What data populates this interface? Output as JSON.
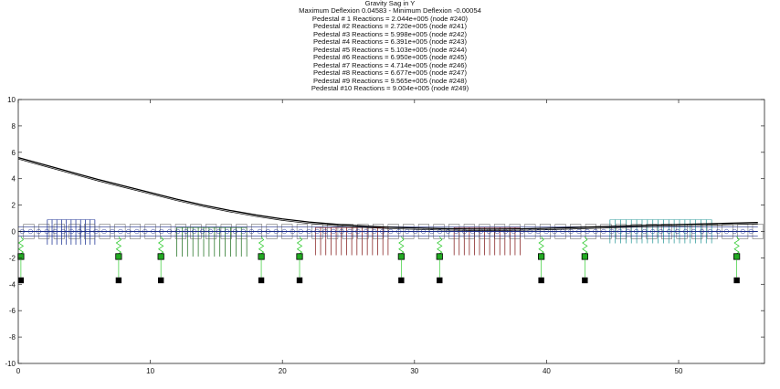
{
  "figure": {
    "title": "Gravity Sag in Y",
    "subtitle": "Maximum Deflexion 0.04583 - Minimum Deflexion -0.00054",
    "reaction_lines": [
      "Pedestal # 1 Reactions = 2.044e+005 (node #240)",
      "Pedestal #2 Reactions = 2.720e+005 (node #241)",
      "Pedestal #3 Reactions = 5.998e+005 (node #242)",
      "Pedestal #4 Reactions = 6.391e+005 (node #243)",
      "Pedestal #5 Reactions = 5.103e+005 (node #244)",
      "Pedestal #6 Reactions = 6.950e+005 (node #245)",
      "Pedestal #7 Reactions = 4.714e+005 (node #246)",
      "Pedestal #8 Reactions = 6.677e+005 (node #247)",
      "Pedestal #9 Reactions = 9.565e+005 (node #248)",
      "Pedestal #10 Reactions = 9.004e+005 (node #249)"
    ]
  },
  "colors": {
    "axis": "#222222",
    "sag_curve": "#000000",
    "shaft": "#1e2f8c",
    "blue_disks": "#2a3f9a",
    "green_disks": "#2f7a2f",
    "red_disks": "#8b2a2a",
    "cyan_disks": "#3aa0a0",
    "spring": "#33cc33",
    "bearing_green": "#22aa22",
    "bearing_black": "#000000"
  },
  "chart_data": {
    "type": "line",
    "xlim": [
      0,
      56.5
    ],
    "ylim": [
      -10,
      10
    ],
    "xticks": [
      0,
      10,
      20,
      30,
      40,
      50
    ],
    "yticks": [
      10,
      8,
      6,
      4,
      2,
      0,
      -2,
      -4,
      -6,
      -8,
      -10
    ],
    "xlabel": "",
    "ylabel": "",
    "grid": false,
    "series": [
      {
        "x": [
          0,
          2,
          4,
          6,
          8,
          10,
          12,
          14,
          16,
          18,
          20,
          22,
          24,
          26,
          28,
          30,
          32,
          34,
          36,
          38,
          40,
          42,
          44,
          46,
          48,
          50,
          52,
          54,
          56
        ],
        "y": [
          5.6,
          5.05,
          4.5,
          3.95,
          3.45,
          2.95,
          2.45,
          2.0,
          1.6,
          1.25,
          0.95,
          0.72,
          0.55,
          0.42,
          0.33,
          0.27,
          0.22,
          0.19,
          0.18,
          0.2,
          0.24,
          0.3,
          0.36,
          0.42,
          0.48,
          0.53,
          0.58,
          0.63,
          0.68
        ]
      },
      {
        "x": [
          0,
          4,
          8,
          12,
          16,
          20,
          24,
          28,
          32,
          36,
          40,
          44,
          48,
          52,
          56
        ],
        "y": [
          0,
          0,
          0,
          0,
          0,
          0,
          0,
          0,
          0,
          0,
          0,
          0,
          0,
          0,
          0
        ]
      }
    ],
    "pedestals_x": [
      0.2,
      7.6,
      10.8,
      18.4,
      21.3,
      29.0,
      31.9,
      39.6,
      42.9,
      54.4
    ],
    "spring_y": [
      -0.4,
      -1.8
    ],
    "bearing_green_y": -1.9,
    "bearing_black_y": -3.7,
    "disk_groups": [
      {
        "color_key": "blue_disks",
        "x_from": 2.2,
        "x_to": 5.8,
        "count": 11,
        "top": 0.9,
        "bottom": -1.0
      },
      {
        "color_key": "green_disks",
        "x_from": 12.0,
        "x_to": 17.3,
        "count": 14,
        "top": 0.3,
        "bottom": -1.9
      },
      {
        "color_key": "red_disks",
        "x_from": 22.5,
        "x_to": 28.0,
        "count": 15,
        "top": 0.3,
        "bottom": -1.8
      },
      {
        "color_key": "red_disks",
        "x_from": 33.0,
        "x_to": 38.0,
        "count": 14,
        "top": 0.3,
        "bottom": -1.8
      },
      {
        "color_key": "cyan_disks",
        "x_from": 44.8,
        "x_to": 52.5,
        "count": 20,
        "top": 0.9,
        "bottom": -0.9
      }
    ]
  }
}
